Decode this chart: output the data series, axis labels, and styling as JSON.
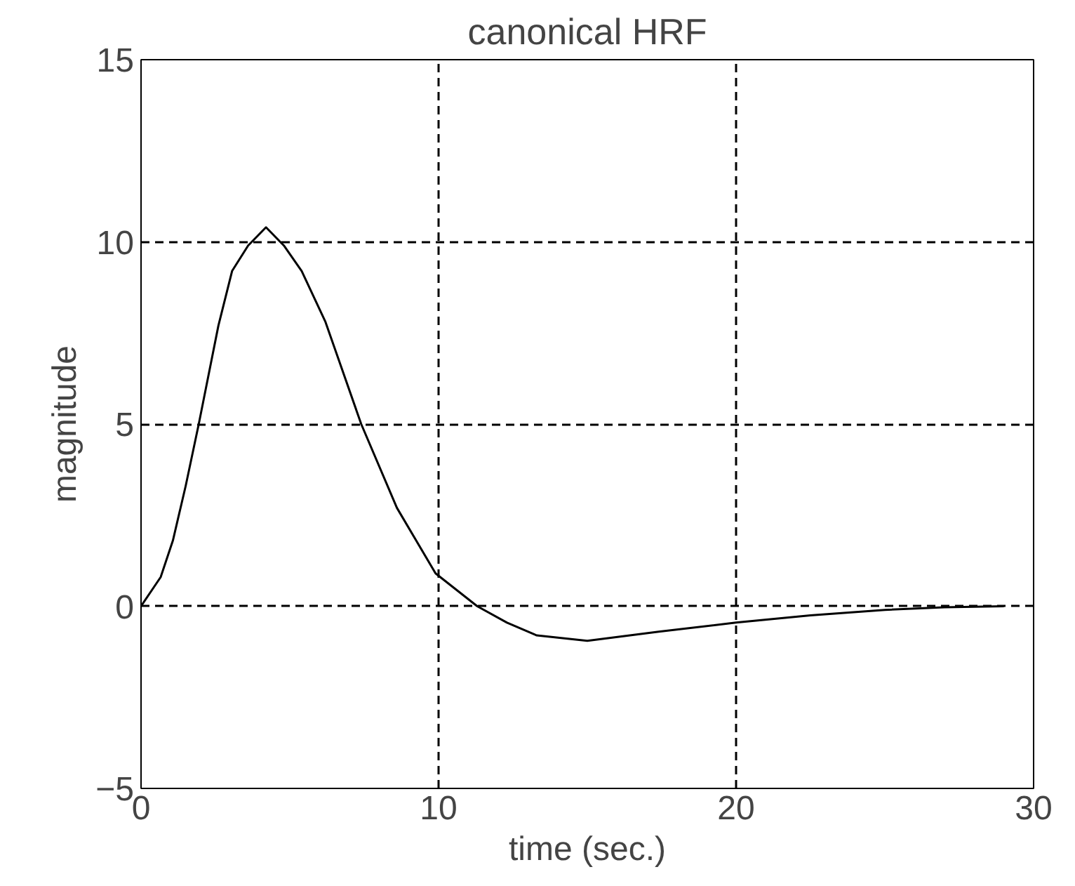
{
  "chart_data": {
    "type": "line",
    "title": "canonical HRF",
    "xlabel": "time (sec.)",
    "ylabel": "magnitude",
    "x": [
      0,
      0.66,
      1.07,
      1.5,
      1.94,
      2.6,
      3.06,
      3.6,
      4.2,
      4.8,
      5.4,
      6.2,
      7.4,
      8.6,
      9.9,
      11.3,
      12.3,
      13.3,
      15,
      17.4,
      20,
      22.5,
      25,
      27,
      29
    ],
    "series": [
      {
        "color": "#000000",
        "values": [
          0,
          0.8,
          1.8,
          3.3,
          5,
          7.7,
          9.2,
          9.9,
          10.4,
          9.9,
          9.2,
          7.8,
          5,
          2.7,
          0.9,
          0,
          -0.45,
          -0.8,
          -0.95,
          -0.7,
          -0.45,
          -0.25,
          -0.1,
          -0.03,
          0
        ]
      }
    ],
    "xlim": [
      0,
      30
    ],
    "ylim": [
      -5,
      15
    ],
    "xticks": [
      0,
      10,
      20,
      30
    ],
    "yticks": [
      -5,
      0,
      5,
      10,
      15
    ],
    "grid": true,
    "line_style": "solid",
    "marker": "none"
  }
}
